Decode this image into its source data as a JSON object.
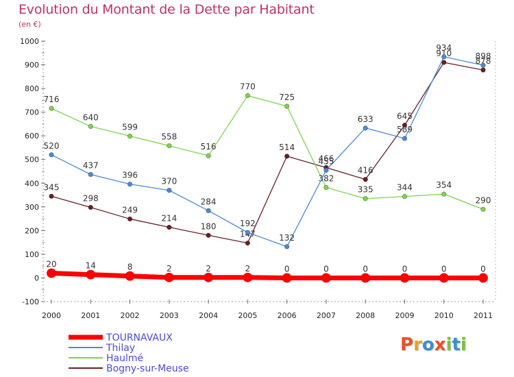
{
  "header": {
    "title": "Evolution du Montant de la Dette par Habitant",
    "subtitle": "(en €)"
  },
  "logo": {
    "text": "Proxiti",
    "letters": [
      {
        "ch": "P",
        "color": "#e8502a"
      },
      {
        "ch": "r",
        "color": "#f0a020"
      },
      {
        "ch": "o",
        "color": "#3a8fd0"
      },
      {
        "ch": "x",
        "color": "#e8502a"
      },
      {
        "ch": "i",
        "color": "#80c040"
      },
      {
        "ch": "t",
        "color": "#3a8fd0"
      },
      {
        "ch": "i",
        "color": "#80c040"
      }
    ]
  },
  "chart_data": {
    "type": "line",
    "title": "Evolution du Montant de la Dette par Habitant",
    "subtitle": "(en €)",
    "x": [
      "2000",
      "2001",
      "2002",
      "2003",
      "2004",
      "2005",
      "2006",
      "2007",
      "2008",
      "2009",
      "2010",
      "2011"
    ],
    "ylim": [
      -100,
      1000
    ],
    "yticks": [
      -100,
      0,
      100,
      200,
      300,
      400,
      500,
      600,
      700,
      800,
      900,
      1000
    ],
    "grid": false,
    "legend_position": "bottom-left",
    "series": [
      {
        "name": "TOURNAVAUX",
        "color": "#ff0000",
        "values": [
          20,
          14,
          8,
          2,
          2,
          2,
          0,
          0,
          0,
          0,
          0,
          0
        ],
        "labels": [
          "20",
          "14",
          "8",
          "2",
          "2",
          "2",
          "0",
          "0",
          "0",
          "0",
          "0",
          "0"
        ]
      },
      {
        "name": "Thilay",
        "color": "#4a8ad4",
        "values": [
          520,
          437,
          396,
          370,
          284,
          192,
          132,
          455,
          633,
          589,
          934,
          898
        ],
        "labels": [
          "520",
          "437",
          "396",
          "370",
          "284",
          "192",
          "132",
          "455",
          "633",
          "589",
          "934",
          "898"
        ]
      },
      {
        "name": "Haulmé",
        "color": "#7cd44a",
        "values": [
          716,
          640,
          599,
          558,
          516,
          770,
          725,
          382,
          335,
          344,
          354,
          290
        ],
        "labels": [
          "716",
          "640",
          "599",
          "558",
          "516",
          "770",
          "725",
          "382",
          "335",
          "344",
          "354",
          "290"
        ]
      },
      {
        "name": "Bogny-sur-Meuse",
        "color": "#6a1e22",
        "values": [
          345,
          298,
          249,
          214,
          180,
          147,
          514,
          466,
          416,
          645,
          910,
          878
        ],
        "labels": [
          "345",
          "298",
          "249",
          "214",
          "180",
          "147",
          "514",
          "466",
          "416",
          "645",
          "910",
          "878"
        ]
      }
    ]
  }
}
